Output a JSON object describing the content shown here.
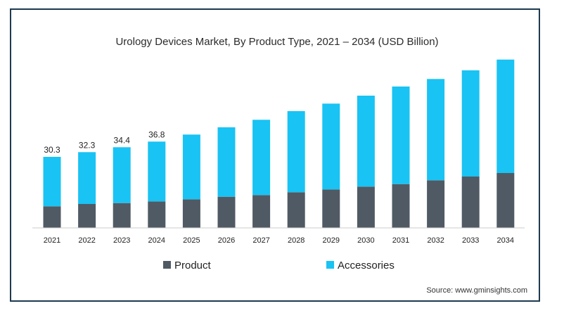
{
  "chart_data": {
    "type": "bar",
    "stacked": true,
    "title": "Urology Devices Market, By Product Type, 2021 – 2034 (USD Billion)",
    "xlabel": "",
    "ylabel": "",
    "categories": [
      "2021",
      "2022",
      "2023",
      "2024",
      "2025",
      "2026",
      "2027",
      "2028",
      "2029",
      "2030",
      "2031",
      "2032",
      "2033",
      "2034"
    ],
    "series": [
      {
        "name": "Product",
        "color": "#505a64",
        "values": [
          9.2,
          10.2,
          10.6,
          11.3,
          12.2,
          13.3,
          14.0,
          15.2,
          16.4,
          17.6,
          18.7,
          20.3,
          21.9,
          23.4
        ]
      },
      {
        "name": "Accessories",
        "color": "#19c3f3",
        "values": [
          21.1,
          22.1,
          23.8,
          25.5,
          27.6,
          29.6,
          32.1,
          34.6,
          36.6,
          38.8,
          41.6,
          43.2,
          45.3,
          48.4
        ]
      }
    ],
    "totals_labels": [
      "30.3",
      "32.3",
      "34.4",
      "36.8",
      "",
      "",
      "",
      "",
      "",
      "",
      "",
      "",
      "",
      ""
    ],
    "ylim": [
      0,
      75
    ],
    "grid": false,
    "legend_position": "bottom-center"
  },
  "source": "Source: www.gminsights.com",
  "colors": {
    "frame_border": "#1d3a4f",
    "baseline": "#cccccc"
  }
}
